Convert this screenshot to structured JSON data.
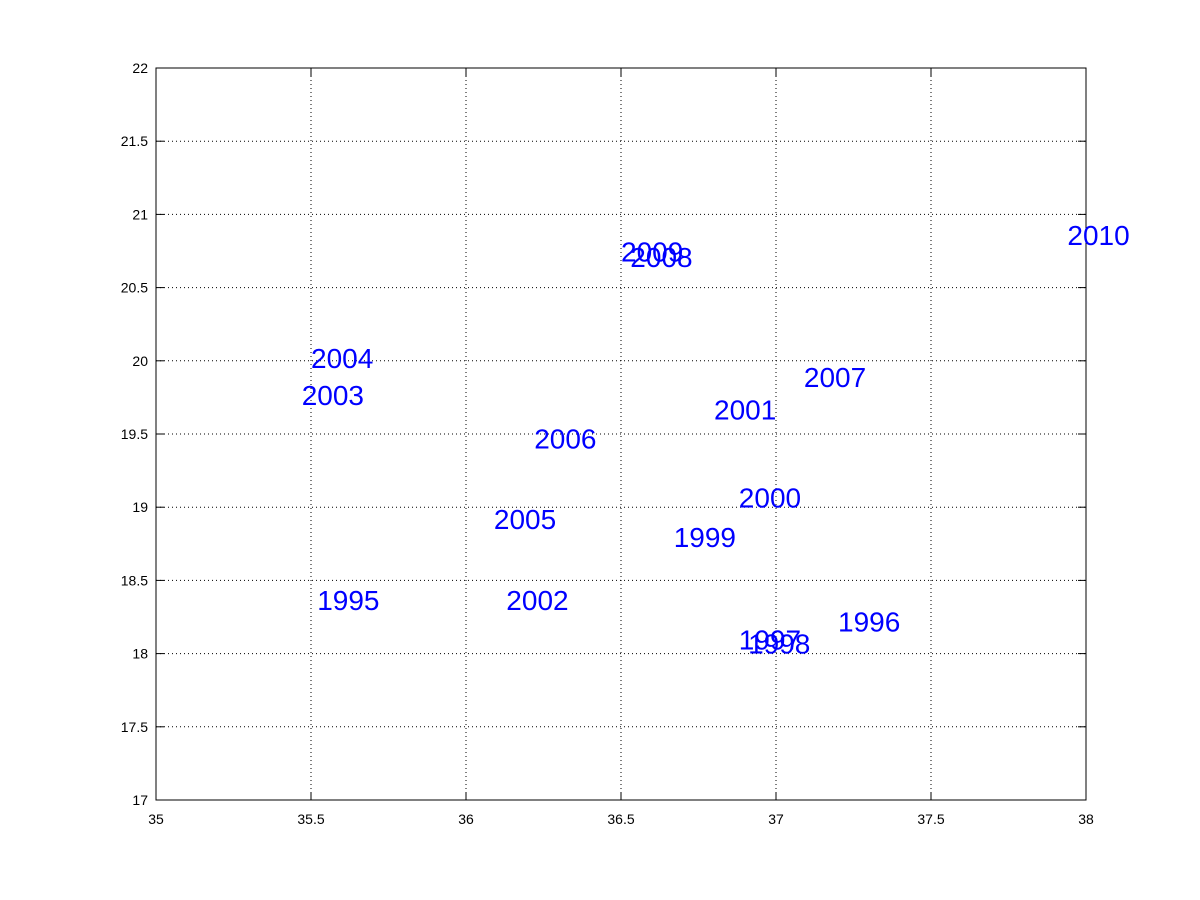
{
  "chart_data": {
    "type": "scatter",
    "title": "",
    "xlabel": "",
    "ylabel": "",
    "xlim": [
      35,
      38
    ],
    "ylim": [
      17,
      22
    ],
    "xticks": [
      35,
      35.5,
      36,
      36.5,
      37,
      37.5,
      38
    ],
    "xtick_labels": [
      "35",
      "35.5",
      "36",
      "36.5",
      "37",
      "37.5",
      "38"
    ],
    "yticks": [
      17,
      17.5,
      18,
      18.5,
      19,
      19.5,
      20,
      20.5,
      21,
      21.5,
      22
    ],
    "ytick_labels": [
      "17",
      "17.5",
      "18",
      "18.5",
      "19",
      "19.5",
      "20",
      "20.5",
      "21",
      "21.5",
      "22"
    ],
    "grid": true,
    "marker_color": "#0000ff",
    "points": [
      {
        "label": "1995",
        "x": 35.52,
        "y": 18.35
      },
      {
        "label": "1996",
        "x": 37.2,
        "y": 18.2
      },
      {
        "label": "1997",
        "x": 36.88,
        "y": 18.08
      },
      {
        "label": "1998",
        "x": 36.91,
        "y": 18.05
      },
      {
        "label": "1999",
        "x": 36.67,
        "y": 18.78
      },
      {
        "label": "2000",
        "x": 36.88,
        "y": 19.05
      },
      {
        "label": "2001",
        "x": 36.8,
        "y": 19.65
      },
      {
        "label": "2002",
        "x": 36.13,
        "y": 18.35
      },
      {
        "label": "2003",
        "x": 35.47,
        "y": 19.75
      },
      {
        "label": "2004",
        "x": 35.5,
        "y": 20.0
      },
      {
        "label": "2005",
        "x": 36.09,
        "y": 18.9
      },
      {
        "label": "2006",
        "x": 36.22,
        "y": 19.45
      },
      {
        "label": "2007",
        "x": 37.09,
        "y": 19.87
      },
      {
        "label": "2008",
        "x": 36.53,
        "y": 20.69
      },
      {
        "label": "2009",
        "x": 36.5,
        "y": 20.73
      },
      {
        "label": "2010",
        "x": 37.94,
        "y": 20.84
      }
    ]
  }
}
